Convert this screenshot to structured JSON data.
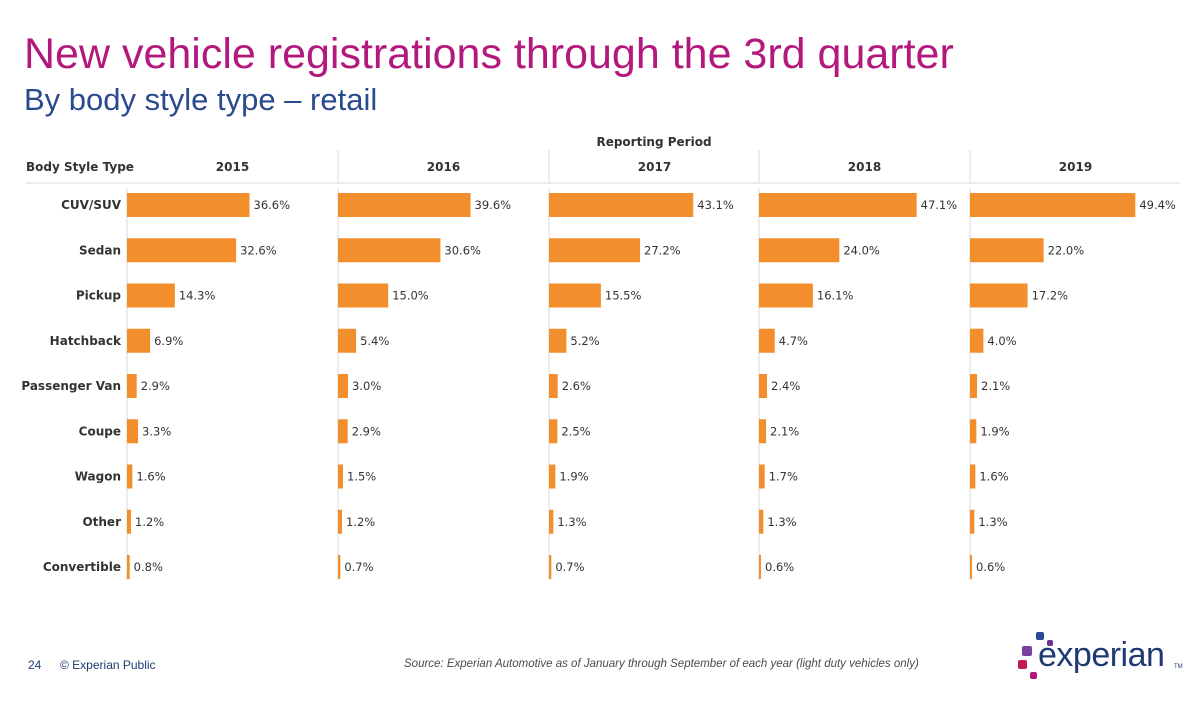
{
  "header": {
    "title": "New vehicle registrations through the 3rd quarter",
    "subtitle": "By body style type – retail"
  },
  "footer": {
    "page_number": "24",
    "copyright": "© Experian Public",
    "source": "Source: Experian Automotive as of January through September of each year (light duty vehicles only)",
    "logo_text": "experian",
    "logo_tm": "TM"
  },
  "colors": {
    "bar": "#f28e2b",
    "title": "#b3197d",
    "subtitle": "#2a4a8f",
    "text": "#333333"
  },
  "chart_data": {
    "type": "bar",
    "orientation": "horizontal",
    "title": "Reporting Period",
    "row_header": "Body Style Type",
    "categories": [
      "CUV/SUV",
      "Sedan",
      "Pickup",
      "Hatchback",
      "Passenger Van",
      "Coupe",
      "Wagon",
      "Other",
      "Convertible"
    ],
    "series": [
      {
        "name": "2015",
        "values": [
          36.6,
          32.6,
          14.3,
          6.9,
          2.9,
          3.3,
          1.6,
          1.2,
          0.8
        ],
        "labels": [
          "36.6%",
          "32.6%",
          "14.3%",
          "6.9%",
          "2.9%",
          "3.3%",
          "1.6%",
          "1.2%",
          "0.8%"
        ]
      },
      {
        "name": "2016",
        "values": [
          39.6,
          30.6,
          15.0,
          5.4,
          3.0,
          2.9,
          1.5,
          1.2,
          0.7
        ],
        "labels": [
          "39.6%",
          "30.6%",
          "15.0%",
          "5.4%",
          "3.0%",
          "2.9%",
          "1.5%",
          "1.2%",
          "0.7%"
        ]
      },
      {
        "name": "2017",
        "values": [
          43.1,
          27.2,
          15.5,
          5.2,
          2.6,
          2.5,
          1.9,
          1.3,
          0.7
        ],
        "labels": [
          "43.1%",
          "27.2%",
          "15.5%",
          "5.2%",
          "2.6%",
          "2.5%",
          "1.9%",
          "1.3%",
          "0.7%"
        ]
      },
      {
        "name": "2018",
        "values": [
          47.1,
          24.0,
          16.1,
          4.7,
          2.4,
          2.1,
          1.7,
          1.3,
          0.6
        ],
        "labels": [
          "47.1%",
          "24.0%",
          "16.1%",
          "4.7%",
          "2.4%",
          "2.1%",
          "1.7%",
          "1.3%",
          "0.6%"
        ]
      },
      {
        "name": "2019",
        "values": [
          49.4,
          22.0,
          17.2,
          4.0,
          2.1,
          1.9,
          1.6,
          1.3,
          0.6
        ],
        "labels": [
          "49.4%",
          "22.0%",
          "17.2%",
          "4.0%",
          "2.1%",
          "1.9%",
          "1.6%",
          "1.3%",
          "0.6%"
        ]
      }
    ],
    "xlim": [
      0,
      50
    ],
    "grid": false,
    "legend": "none"
  }
}
